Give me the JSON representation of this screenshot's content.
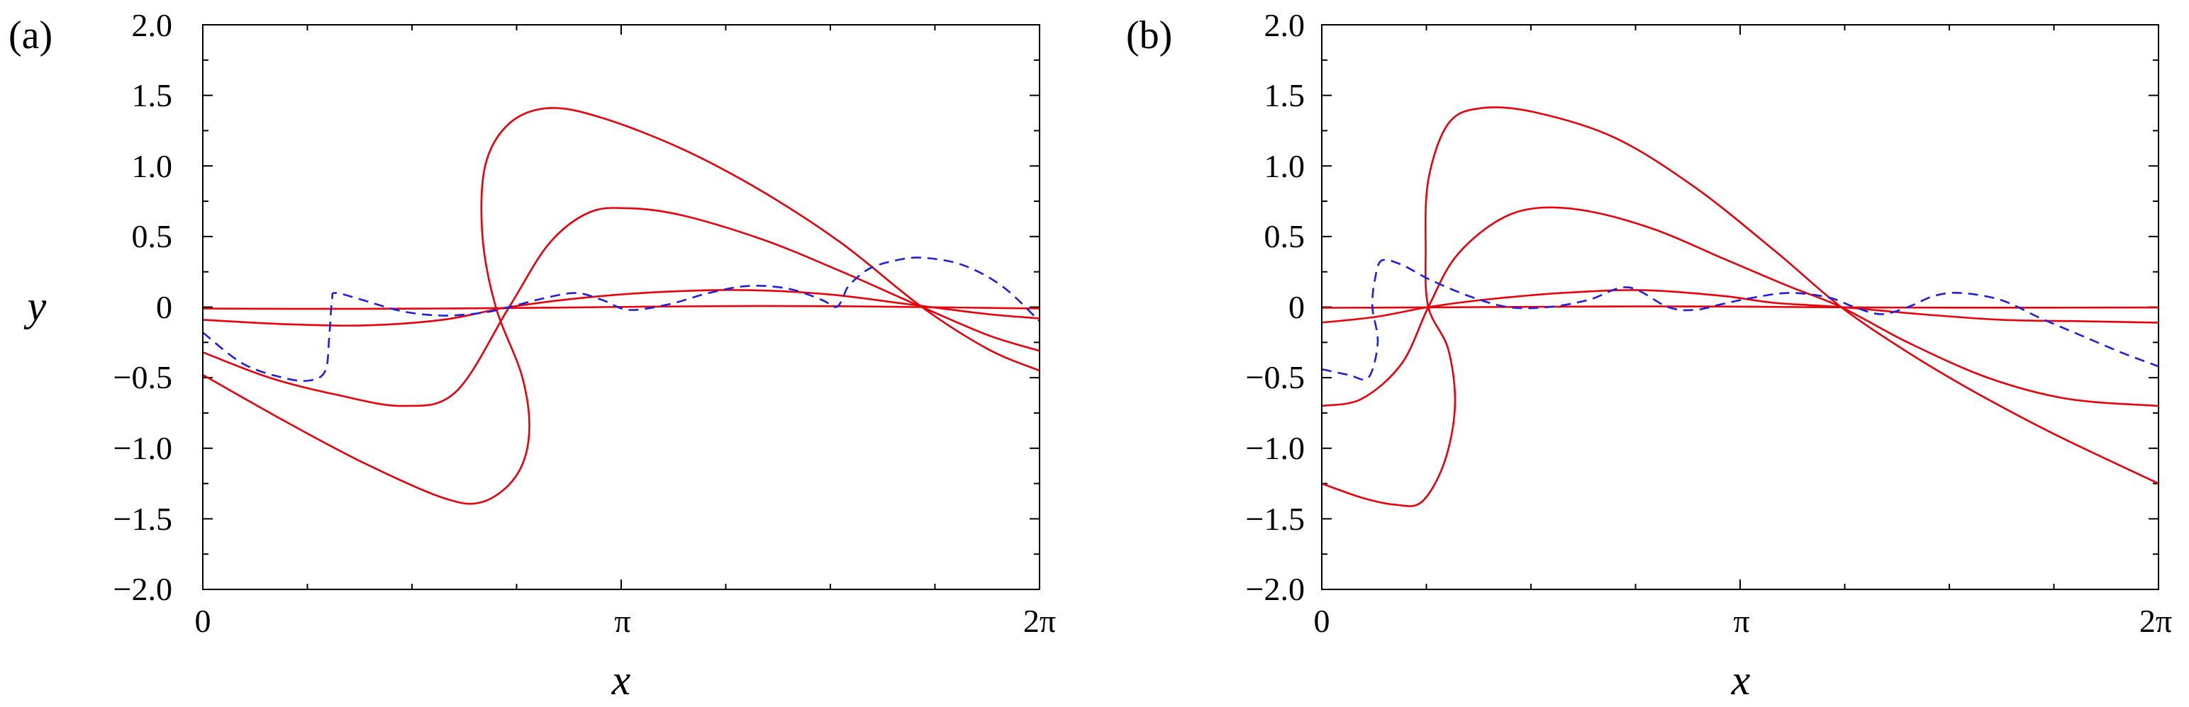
{
  "chart_data": [
    {
      "type": "line",
      "panel_label": "(a)",
      "xlabel": "x",
      "ylabel": "y",
      "xlim": [
        0,
        6.2832
      ],
      "ylim": [
        -2.0,
        2.0
      ],
      "xticks": [
        0,
        3.1416,
        6.2832
      ],
      "xtick_labels": [
        "0",
        "π",
        "2π"
      ],
      "yticks": [
        2.0,
        1.5,
        1.0,
        0.5,
        0,
        -0.5,
        -1.0,
        -1.5,
        -2.0
      ],
      "ytick_labels": [
        "2.0",
        "1.5",
        "1.0",
        "0.5",
        "0",
        "−0.5",
        "−1.0",
        "−1.5",
        "−2.0"
      ],
      "colors": {
        "solid": "#e8000b",
        "dashed": "#1f1fe0"
      },
      "series": [
        {
          "name": "solid-1",
          "style": "solid",
          "x": [
            0,
            0.6,
            1.2,
            1.8,
            2.4,
            3.0,
            3.6,
            4.2,
            4.8,
            5.4,
            6.2832
          ],
          "y": [
            -0.01,
            -0.012,
            -0.012,
            -0.01,
            -0.006,
            0.0,
            0.005,
            0.008,
            0.006,
            0.0,
            -0.01
          ]
        },
        {
          "name": "solid-2",
          "style": "solid",
          "x": [
            0,
            0.6,
            1.2,
            1.8,
            2.3,
            2.9,
            3.5,
            4.1,
            4.7,
            5.3,
            5.9,
            6.2832
          ],
          "y": [
            -0.09,
            -0.12,
            -0.13,
            -0.09,
            0.0,
            0.07,
            0.11,
            0.12,
            0.09,
            0.02,
            -0.05,
            -0.08
          ]
        },
        {
          "name": "solid-3",
          "style": "solid",
          "x": [
            0,
            0.5,
            1.0,
            1.5,
            1.9,
            2.3,
            2.6,
            2.9,
            3.2,
            3.6,
            4.2,
            4.8,
            5.4,
            5.9,
            6.2832
          ],
          "y": [
            -0.32,
            -0.5,
            -0.62,
            -0.7,
            -0.6,
            0.0,
            0.45,
            0.67,
            0.7,
            0.65,
            0.48,
            0.25,
            0.0,
            -0.2,
            -0.31
          ]
        },
        {
          "name": "solid-4",
          "style": "solid",
          "x": [
            0,
            0.6,
            1.2,
            1.8,
            2.1,
            2.35,
            2.45,
            2.4,
            2.2,
            2.1,
            2.12,
            2.3,
            2.6,
            3.0,
            3.6,
            4.2,
            4.8,
            5.4,
            5.9,
            6.2832
          ],
          "y": [
            -0.48,
            -0.8,
            -1.1,
            -1.35,
            -1.38,
            -1.2,
            -0.9,
            -0.5,
            0.0,
            0.5,
            1.0,
            1.3,
            1.41,
            1.34,
            1.12,
            0.82,
            0.45,
            0.0,
            -0.3,
            -0.45
          ]
        },
        {
          "name": "dashed",
          "style": "dashed",
          "x": [
            0,
            0.3,
            0.6,
            0.8,
            0.92,
            0.95,
            0.97,
            1.0,
            1.2,
            1.5,
            1.8,
            2.1,
            2.3,
            2.55,
            2.8,
            3.0,
            3.2,
            3.5,
            3.8,
            4.1,
            4.4,
            4.65,
            4.75,
            4.8,
            4.85,
            5.0,
            5.2,
            5.4,
            5.7,
            6.0,
            6.2832
          ],
          "y": [
            -0.18,
            -0.4,
            -0.5,
            -0.52,
            -0.45,
            -0.2,
            0.05,
            0.1,
            0.05,
            -0.03,
            -0.06,
            -0.04,
            0.0,
            0.06,
            0.1,
            0.05,
            -0.02,
            0.02,
            0.1,
            0.15,
            0.13,
            0.05,
            0.0,
            0.05,
            0.15,
            0.27,
            0.33,
            0.35,
            0.3,
            0.15,
            -0.1
          ]
        }
      ]
    },
    {
      "type": "line",
      "panel_label": "(b)",
      "xlabel": "x",
      "ylabel": "",
      "xlim": [
        0,
        6.2832
      ],
      "ylim": [
        -2.0,
        2.0
      ],
      "xticks": [
        0,
        3.1416,
        6.2832
      ],
      "xtick_labels": [
        "0",
        "π",
        "2π"
      ],
      "yticks": [
        2.0,
        1.5,
        1.0,
        0.5,
        0,
        -0.5,
        -1.0,
        -1.5,
        -2.0
      ],
      "ytick_labels": [
        "2.0",
        "1.5",
        "1.0",
        "0.5",
        "0",
        "−0.5",
        "−1.0",
        "−1.5",
        "−2.0"
      ],
      "colors": {
        "solid": "#e8000b",
        "dashed": "#1f1fe0"
      },
      "series": [
        {
          "name": "solid-1",
          "style": "solid",
          "x": [
            0,
            0.6,
            1.2,
            1.8,
            2.4,
            3.0,
            3.6,
            4.2,
            4.8,
            5.4,
            6.2832
          ],
          "y": [
            -0.005,
            -0.003,
            0.0,
            0.003,
            0.005,
            0.004,
            0.0,
            -0.003,
            -0.004,
            -0.004,
            -0.003
          ]
        },
        {
          "name": "solid-2",
          "style": "solid",
          "x": [
            0,
            0.4,
            0.8,
            1.2,
            1.8,
            2.4,
            3.0,
            3.4,
            3.9,
            4.5,
            5.1,
            5.7,
            6.2832
          ],
          "y": [
            -0.11,
            -0.07,
            0.0,
            0.05,
            0.1,
            0.12,
            0.08,
            0.03,
            0.0,
            -0.05,
            -0.09,
            -0.1,
            -0.11
          ]
        },
        {
          "name": "solid-3",
          "style": "solid",
          "x": [
            0,
            0.3,
            0.6,
            0.8,
            1.0,
            1.3,
            1.6,
            2.0,
            2.5,
            3.0,
            3.5,
            3.9,
            4.4,
            5.0,
            5.6,
            6.2832
          ],
          "y": [
            -0.7,
            -0.65,
            -0.4,
            0.0,
            0.35,
            0.6,
            0.7,
            0.68,
            0.55,
            0.35,
            0.15,
            0.0,
            -0.25,
            -0.5,
            -0.65,
            -0.7
          ]
        },
        {
          "name": "solid-4",
          "style": "solid",
          "x": [
            0,
            0.3,
            0.55,
            0.75,
            0.92,
            1.0,
            0.95,
            0.8,
            0.78,
            0.8,
            0.95,
            1.2,
            1.6,
            2.2,
            2.8,
            3.4,
            3.9,
            4.4,
            4.9,
            5.5,
            6.2832
          ],
          "y": [
            -1.25,
            -1.35,
            -1.4,
            -1.38,
            -1.1,
            -0.7,
            -0.3,
            0.0,
            0.4,
            0.9,
            1.3,
            1.41,
            1.38,
            1.2,
            0.85,
            0.4,
            0.0,
            -0.32,
            -0.6,
            -0.9,
            -1.25
          ]
        },
        {
          "name": "dashed",
          "style": "dashed",
          "x": [
            0,
            0.2,
            0.35,
            0.42,
            0.38,
            0.4,
            0.45,
            0.6,
            0.8,
            1.1,
            1.4,
            1.7,
            2.0,
            2.3,
            2.6,
            2.8,
            3.0,
            3.2,
            3.5,
            3.8,
            4.0,
            4.2,
            4.4,
            4.6,
            4.8,
            5.1,
            5.4,
            5.7,
            6.0,
            6.2832
          ],
          "y": [
            -0.44,
            -0.48,
            -0.5,
            -0.25,
            0.0,
            0.2,
            0.33,
            0.3,
            0.2,
            0.08,
            0.0,
            0.0,
            0.05,
            0.14,
            0.0,
            -0.02,
            0.02,
            0.06,
            0.1,
            0.07,
            0.0,
            -0.05,
            0.0,
            0.08,
            0.1,
            0.05,
            -0.08,
            -0.2,
            -0.32,
            -0.42
          ]
        }
      ]
    }
  ]
}
